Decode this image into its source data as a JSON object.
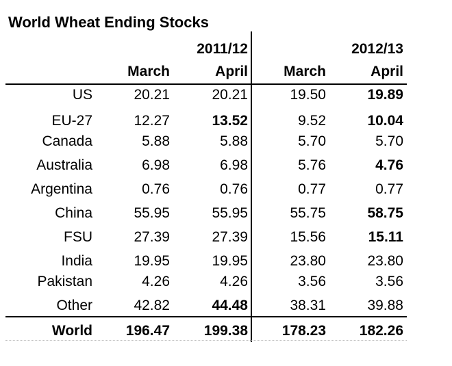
{
  "title": "World Wheat Ending Stocks",
  "header": {
    "year1": "2011/12",
    "year2": "2012/13",
    "months": [
      "March",
      "April",
      "March",
      "April"
    ]
  },
  "rows": [
    {
      "label": "US",
      "values": [
        "20.21",
        "20.21",
        "19.50",
        "19.89"
      ],
      "bold": [
        false,
        false,
        false,
        true
      ]
    },
    {
      "label": "EU-27",
      "values": [
        "12.27",
        "13.52",
        "9.52",
        "10.04"
      ],
      "bold": [
        false,
        true,
        false,
        true
      ]
    },
    {
      "label": "Canada",
      "values": [
        "5.88",
        "5.88",
        "5.70",
        "5.70"
      ],
      "bold": [
        false,
        false,
        false,
        false
      ]
    },
    {
      "label": "Australia",
      "values": [
        "6.98",
        "6.98",
        "5.76",
        "4.76"
      ],
      "bold": [
        false,
        false,
        false,
        true
      ]
    },
    {
      "label": "Argentina",
      "values": [
        "0.76",
        "0.76",
        "0.77",
        "0.77"
      ],
      "bold": [
        false,
        false,
        false,
        false
      ]
    },
    {
      "label": "China",
      "values": [
        "55.95",
        "55.95",
        "55.75",
        "58.75"
      ],
      "bold": [
        false,
        false,
        false,
        true
      ]
    },
    {
      "label": "FSU",
      "values": [
        "27.39",
        "27.39",
        "15.56",
        "15.11"
      ],
      "bold": [
        false,
        false,
        false,
        true
      ]
    },
    {
      "label": "India",
      "values": [
        "19.95",
        "19.95",
        "23.80",
        "23.80"
      ],
      "bold": [
        false,
        false,
        false,
        false
      ]
    },
    {
      "label": "Pakistan",
      "values": [
        "4.26",
        "4.26",
        "3.56",
        "3.56"
      ],
      "bold": [
        false,
        false,
        false,
        false
      ]
    },
    {
      "label": "Other",
      "values": [
        "42.82",
        "44.48",
        "38.31",
        "39.88"
      ],
      "bold": [
        false,
        true,
        false,
        false
      ]
    }
  ],
  "total": {
    "label": "World",
    "values": [
      "196.47",
      "199.38",
      "178.23",
      "182.26"
    ]
  }
}
